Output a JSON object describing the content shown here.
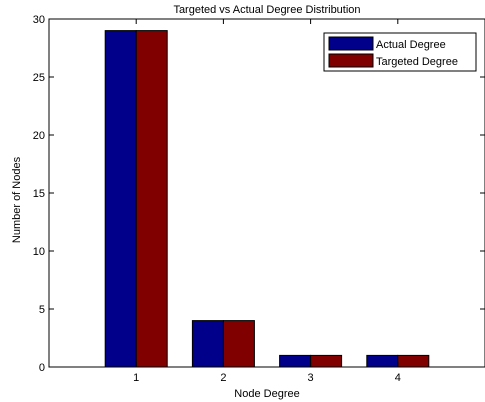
{
  "chart_data": {
    "type": "bar",
    "title": "Targeted vs Actual Degree Distribution",
    "xlabel": "Node Degree",
    "ylabel": "Number of Nodes",
    "categories": [
      "1",
      "2",
      "3",
      "4"
    ],
    "series": [
      {
        "name": "Actual Degree",
        "values": [
          29,
          4,
          1,
          1
        ],
        "color": "#00008B"
      },
      {
        "name": "Targeted Degree",
        "values": [
          29,
          4,
          1,
          1
        ],
        "color": "#800000"
      }
    ],
    "ylim": [
      0,
      30
    ],
    "yticks": [
      0,
      5,
      10,
      15,
      20,
      25,
      30
    ],
    "grid": false,
    "legend_position": "top-right"
  }
}
